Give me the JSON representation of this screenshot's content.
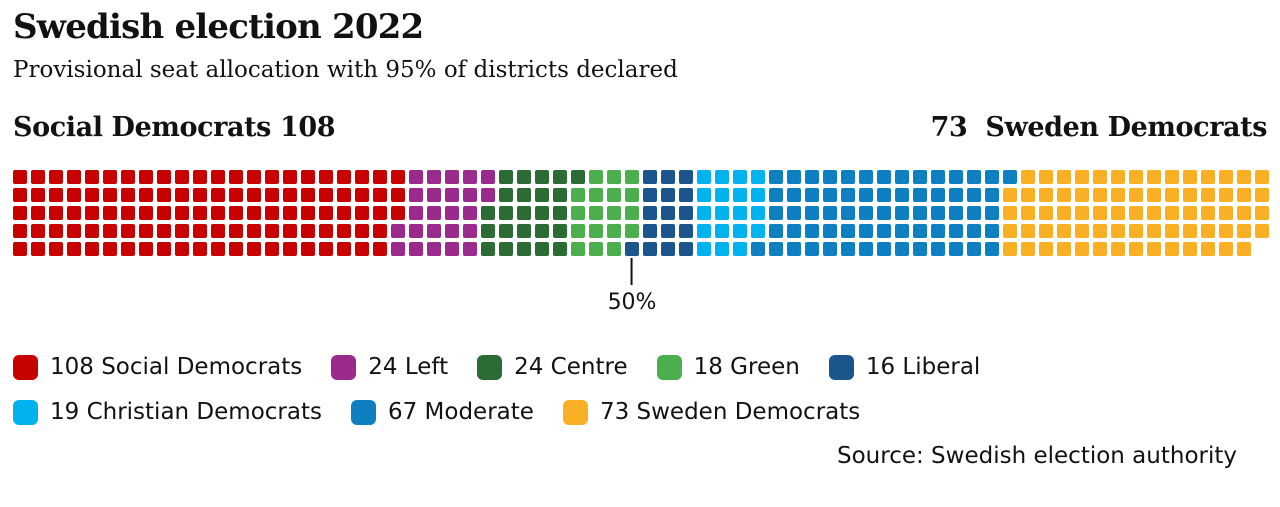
{
  "header": {
    "title": "Swedish election 2022",
    "subtitle": "Provisional seat allocation with 95% of districts declared"
  },
  "bar_labels": {
    "left": "Social Democrats 108",
    "right": "73  Sweden Democrats"
  },
  "chart_data": {
    "type": "waffle",
    "title": "Swedish election 2022",
    "subtitle": "Provisional seat allocation with 95% of districts declared",
    "total_seats": 349,
    "rows": 5,
    "fill_order": "column-major-left-to-right",
    "marker": {
      "label": "50%",
      "at_fraction": 0.5
    },
    "parties": [
      {
        "name": "Social Democrats",
        "seats": 108,
        "color": "#c70000"
      },
      {
        "name": "Left",
        "seats": 24,
        "color": "#9a2a8c"
      },
      {
        "name": "Centre",
        "seats": 24,
        "color": "#2d6b35"
      },
      {
        "name": "Green",
        "seats": 18,
        "color": "#4cae4c"
      },
      {
        "name": "Liberal",
        "seats": 16,
        "color": "#1b558b"
      },
      {
        "name": "Christian Democrats",
        "seats": 19,
        "color": "#00b2ee"
      },
      {
        "name": "Moderate",
        "seats": 67,
        "color": "#0e80c2"
      },
      {
        "name": "Sweden Democrats",
        "seats": 73,
        "color": "#f9b025"
      }
    ]
  },
  "legend": {
    "rows": [
      [
        {
          "label": "108 Social Democrats",
          "color": "#c70000"
        },
        {
          "label": "24 Left",
          "color": "#9a2a8c"
        },
        {
          "label": "24 Centre",
          "color": "#2d6b35"
        },
        {
          "label": "18 Green",
          "color": "#4cae4c"
        },
        {
          "label": "16 Liberal",
          "color": "#1b558b"
        }
      ],
      [
        {
          "label": "19 Christian Democrats",
          "color": "#00b2ee"
        },
        {
          "label": "67 Moderate",
          "color": "#0e80c2"
        },
        {
          "label": "73 Sweden Democrats",
          "color": "#f9b025"
        }
      ]
    ]
  },
  "source": "Source: Swedish election authority"
}
